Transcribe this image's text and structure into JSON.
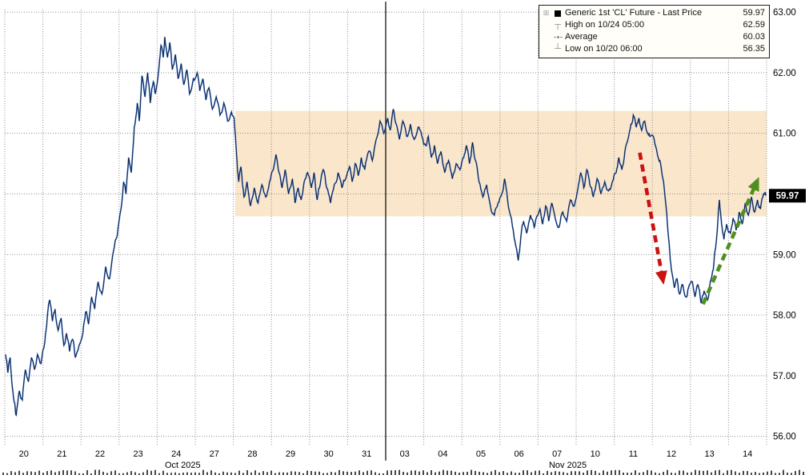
{
  "legend": {
    "rows": [
      {
        "label": "Generic 1st 'CL' Future - Last Price",
        "value": "59.97"
      },
      {
        "label": "High on 10/24 05:00",
        "value": "62.59"
      },
      {
        "label": "Average",
        "value": "60.03"
      },
      {
        "label": "Low on 10/20 06:00",
        "value": "56.35"
      }
    ]
  },
  "chart_data": {
    "type": "line",
    "title": "Generic 1st 'CL' Future - Last Price",
    "ylim": [
      55.85,
      63.12
    ],
    "y_ticks": [
      56,
      57,
      58,
      59,
      60,
      61,
      62,
      63
    ],
    "y_tick_labels": [
      "56.00",
      "57.00",
      "58.00",
      "59.00",
      "60.00",
      "61.00",
      "62.00",
      "63.00"
    ],
    "x_day_labels": [
      "20",
      "21",
      "22",
      "23",
      "24",
      "27",
      "28",
      "29",
      "30",
      "31",
      "03",
      "04",
      "05",
      "06",
      "07",
      "10",
      "11",
      "12",
      "13",
      "14"
    ],
    "x_months": [
      {
        "label": "Oct 2025",
        "center_day": 4.67
      },
      {
        "label": "Nov 2025",
        "center_day": 14.78
      }
    ],
    "month_separator_day": 10,
    "grid": true,
    "legend_position": "top-right",
    "stats": {
      "last": 59.97,
      "high": 62.59,
      "high_time": "10/24 05:00",
      "average": 60.03,
      "low": 56.35,
      "low_time": "10/20 06:00"
    },
    "last_price_label": "59.97",
    "band": {
      "x0": 6.05,
      "x1": 20,
      "y0": 59.63,
      "y1": 61.37,
      "color": "#f9e2c2"
    },
    "arrows": [
      {
        "name": "red-down-arrow",
        "color": "#cc1111",
        "from": [
          16.67,
          60.68
        ],
        "to": [
          17.3,
          58.5
        ]
      },
      {
        "name": "green-up-arrow",
        "color": "#4f8f1f",
        "from": [
          18.33,
          58.18
        ],
        "to": [
          19.8,
          60.28
        ]
      }
    ],
    "line_colors": {
      "glow": "#2e6fd0",
      "core": "#0b1430"
    },
    "series": [
      {
        "name": "Generic 1st 'CL' Future - Last Price",
        "points": [
          [
            0.02,
            57.35
          ],
          [
            0.08,
            57.05
          ],
          [
            0.14,
            57.3
          ],
          [
            0.2,
            56.8
          ],
          [
            0.26,
            56.55
          ],
          [
            0.3,
            56.35
          ],
          [
            0.38,
            56.75
          ],
          [
            0.46,
            56.6
          ],
          [
            0.54,
            57.1
          ],
          [
            0.62,
            56.9
          ],
          [
            0.7,
            57.3
          ],
          [
            0.78,
            57.1
          ],
          [
            0.86,
            57.35
          ],
          [
            0.95,
            57.2
          ],
          [
            1.05,
            57.55
          ],
          [
            1.12,
            58.0
          ],
          [
            1.18,
            58.25
          ],
          [
            1.25,
            57.9
          ],
          [
            1.32,
            58.1
          ],
          [
            1.4,
            57.75
          ],
          [
            1.48,
            57.95
          ],
          [
            1.55,
            57.5
          ],
          [
            1.62,
            57.7
          ],
          [
            1.7,
            57.4
          ],
          [
            1.78,
            57.6
          ],
          [
            1.85,
            57.3
          ],
          [
            1.95,
            57.5
          ],
          [
            2.05,
            57.7
          ],
          [
            2.12,
            58.05
          ],
          [
            2.2,
            57.85
          ],
          [
            2.28,
            58.3
          ],
          [
            2.36,
            58.1
          ],
          [
            2.45,
            58.55
          ],
          [
            2.55,
            58.35
          ],
          [
            2.65,
            58.8
          ],
          [
            2.75,
            58.6
          ],
          [
            2.85,
            59.05
          ],
          [
            2.95,
            59.3
          ],
          [
            3.05,
            59.75
          ],
          [
            3.12,
            60.2
          ],
          [
            3.18,
            60.0
          ],
          [
            3.25,
            60.6
          ],
          [
            3.32,
            60.35
          ],
          [
            3.4,
            61.1
          ],
          [
            3.48,
            61.5
          ],
          [
            3.53,
            61.2
          ],
          [
            3.6,
            61.95
          ],
          [
            3.68,
            61.6
          ],
          [
            3.75,
            62.0
          ],
          [
            3.82,
            61.5
          ],
          [
            3.9,
            61.85
          ],
          [
            3.95,
            61.65
          ],
          [
            4.05,
            62.1
          ],
          [
            4.1,
            62.45
          ],
          [
            4.16,
            62.25
          ],
          [
            4.2,
            62.59
          ],
          [
            4.27,
            62.25
          ],
          [
            4.33,
            62.5
          ],
          [
            4.4,
            62.05
          ],
          [
            4.48,
            62.3
          ],
          [
            4.55,
            61.9
          ],
          [
            4.63,
            62.15
          ],
          [
            4.7,
            61.8
          ],
          [
            4.78,
            62.05
          ],
          [
            4.85,
            61.65
          ],
          [
            4.95,
            61.9
          ],
          [
            5.05,
            62.0
          ],
          [
            5.12,
            61.7
          ],
          [
            5.2,
            61.9
          ],
          [
            5.28,
            61.55
          ],
          [
            5.36,
            61.75
          ],
          [
            5.45,
            61.4
          ],
          [
            5.55,
            61.6
          ],
          [
            5.65,
            61.3
          ],
          [
            5.75,
            61.5
          ],
          [
            5.85,
            61.2
          ],
          [
            5.95,
            61.35
          ],
          [
            6.02,
            61.25
          ],
          [
            6.08,
            60.7
          ],
          [
            6.14,
            60.2
          ],
          [
            6.2,
            60.45
          ],
          [
            6.28,
            59.95
          ],
          [
            6.36,
            60.2
          ],
          [
            6.45,
            59.8
          ],
          [
            6.55,
            60.1
          ],
          [
            6.65,
            59.85
          ],
          [
            6.75,
            60.15
          ],
          [
            6.85,
            59.95
          ],
          [
            6.95,
            60.2
          ],
          [
            7.05,
            60.4
          ],
          [
            7.12,
            60.65
          ],
          [
            7.2,
            60.35
          ],
          [
            7.28,
            60.1
          ],
          [
            7.36,
            60.4
          ],
          [
            7.45,
            60.0
          ],
          [
            7.55,
            60.25
          ],
          [
            7.62,
            59.85
          ],
          [
            7.7,
            60.1
          ],
          [
            7.78,
            59.9
          ],
          [
            7.86,
            60.2
          ],
          [
            7.95,
            60.35
          ],
          [
            8.05,
            60.1
          ],
          [
            8.12,
            60.35
          ],
          [
            8.2,
            59.9
          ],
          [
            8.28,
            60.15
          ],
          [
            8.36,
            60.4
          ],
          [
            8.45,
            60.1
          ],
          [
            8.55,
            59.85
          ],
          [
            8.65,
            60.15
          ],
          [
            8.75,
            60.35
          ],
          [
            8.85,
            60.1
          ],
          [
            8.95,
            60.25
          ],
          [
            9.05,
            60.45
          ],
          [
            9.12,
            60.2
          ],
          [
            9.2,
            60.5
          ],
          [
            9.28,
            60.3
          ],
          [
            9.36,
            60.6
          ],
          [
            9.45,
            60.4
          ],
          [
            9.55,
            60.7
          ],
          [
            9.65,
            60.55
          ],
          [
            9.75,
            60.9
          ],
          [
            9.85,
            61.2
          ],
          [
            9.95,
            61.0
          ],
          [
            10.05,
            61.25
          ],
          [
            10.12,
            61.05
          ],
          [
            10.2,
            61.4
          ],
          [
            10.28,
            61.15
          ],
          [
            10.36,
            60.9
          ],
          [
            10.45,
            61.2
          ],
          [
            10.55,
            60.95
          ],
          [
            10.65,
            61.15
          ],
          [
            10.75,
            60.9
          ],
          [
            10.85,
            61.1
          ],
          [
            10.95,
            60.95
          ],
          [
            11.05,
            60.8
          ],
          [
            11.12,
            60.95
          ],
          [
            11.2,
            60.6
          ],
          [
            11.28,
            60.8
          ],
          [
            11.36,
            60.5
          ],
          [
            11.45,
            60.7
          ],
          [
            11.55,
            60.35
          ],
          [
            11.65,
            60.55
          ],
          [
            11.75,
            60.25
          ],
          [
            11.85,
            60.5
          ],
          [
            11.95,
            60.4
          ],
          [
            12.05,
            60.6
          ],
          [
            12.12,
            60.8
          ],
          [
            12.2,
            60.5
          ],
          [
            12.28,
            60.85
          ],
          [
            12.36,
            60.55
          ],
          [
            12.45,
            60.2
          ],
          [
            12.55,
            59.95
          ],
          [
            12.65,
            60.15
          ],
          [
            12.75,
            59.8
          ],
          [
            12.85,
            59.65
          ],
          [
            12.95,
            59.85
          ],
          [
            13.05,
            60.0
          ],
          [
            13.12,
            60.25
          ],
          [
            13.2,
            59.9
          ],
          [
            13.3,
            59.6
          ],
          [
            13.4,
            59.2
          ],
          [
            13.48,
            58.9
          ],
          [
            13.55,
            59.3
          ],
          [
            13.62,
            59.55
          ],
          [
            13.7,
            59.35
          ],
          [
            13.8,
            59.65
          ],
          [
            13.9,
            59.45
          ],
          [
            13.95,
            59.6
          ],
          [
            14.05,
            59.75
          ],
          [
            14.12,
            59.5
          ],
          [
            14.2,
            59.8
          ],
          [
            14.28,
            59.55
          ],
          [
            14.36,
            59.85
          ],
          [
            14.45,
            59.6
          ],
          [
            14.55,
            59.45
          ],
          [
            14.65,
            59.7
          ],
          [
            14.75,
            59.55
          ],
          [
            14.85,
            59.9
          ],
          [
            14.95,
            59.8
          ],
          [
            15.05,
            60.1
          ],
          [
            15.12,
            60.35
          ],
          [
            15.2,
            60.1
          ],
          [
            15.28,
            60.4
          ],
          [
            15.36,
            60.15
          ],
          [
            15.45,
            59.95
          ],
          [
            15.55,
            60.25
          ],
          [
            15.65,
            60.0
          ],
          [
            15.75,
            60.2
          ],
          [
            15.85,
            60.05
          ],
          [
            15.95,
            60.2
          ],
          [
            16.05,
            60.35
          ],
          [
            16.12,
            60.6
          ],
          [
            16.2,
            60.4
          ],
          [
            16.28,
            60.7
          ],
          [
            16.36,
            60.9
          ],
          [
            16.44,
            61.15
          ],
          [
            16.5,
            61.3
          ],
          [
            16.58,
            61.1
          ],
          [
            16.65,
            61.25
          ],
          [
            16.72,
            61.05
          ],
          [
            16.8,
            61.2
          ],
          [
            16.88,
            61.0
          ],
          [
            16.95,
            60.95
          ],
          [
            17.05,
            60.9
          ],
          [
            17.12,
            60.7
          ],
          [
            17.2,
            60.55
          ],
          [
            17.28,
            60.25
          ],
          [
            17.36,
            59.8
          ],
          [
            17.44,
            59.2
          ],
          [
            17.5,
            58.75
          ],
          [
            17.58,
            58.45
          ],
          [
            17.65,
            58.6
          ],
          [
            17.72,
            58.35
          ],
          [
            17.8,
            58.5
          ],
          [
            17.88,
            58.3
          ],
          [
            17.95,
            58.45
          ],
          [
            18.05,
            58.55
          ],
          [
            18.12,
            58.3
          ],
          [
            18.2,
            58.5
          ],
          [
            18.28,
            58.2
          ],
          [
            18.36,
            58.4
          ],
          [
            18.45,
            58.25
          ],
          [
            18.52,
            58.55
          ],
          [
            18.6,
            58.75
          ],
          [
            18.66,
            59.1
          ],
          [
            18.72,
            59.55
          ],
          [
            18.76,
            59.9
          ],
          [
            18.82,
            59.5
          ],
          [
            18.88,
            59.25
          ],
          [
            18.95,
            59.5
          ],
          [
            19.05,
            59.35
          ],
          [
            19.12,
            59.6
          ],
          [
            19.2,
            59.4
          ],
          [
            19.28,
            59.7
          ],
          [
            19.36,
            59.5
          ],
          [
            19.44,
            59.85
          ],
          [
            19.52,
            59.65
          ],
          [
            19.6,
            59.95
          ],
          [
            19.68,
            59.7
          ],
          [
            19.76,
            59.9
          ],
          [
            19.84,
            59.75
          ],
          [
            19.92,
            60.0
          ],
          [
            19.98,
            59.97
          ]
        ]
      }
    ]
  }
}
